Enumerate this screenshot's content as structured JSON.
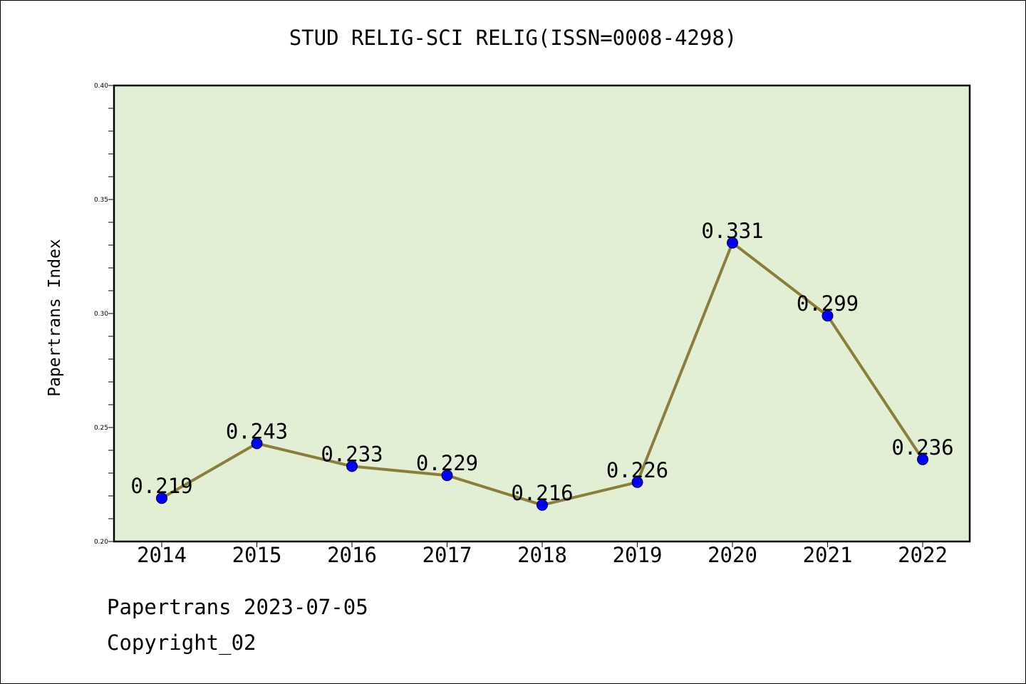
{
  "chart_data": {
    "type": "line",
    "title": "STUD RELIG-SCI RELIG(ISSN=0008-4298)",
    "ylabel": "Papertrans Index",
    "xlabel": "",
    "categories": [
      "2014",
      "2015",
      "2016",
      "2017",
      "2018",
      "2019",
      "2020",
      "2021",
      "2022"
    ],
    "series": [
      {
        "values": [
          0.219,
          0.243,
          0.233,
          0.229,
          0.216,
          0.226,
          0.331,
          0.299,
          0.236
        ],
        "labels": [
          "0.219",
          "0.243",
          "0.233",
          "0.229",
          "0.216",
          "0.226",
          "0.331",
          "0.299",
          "0.236"
        ]
      }
    ],
    "ylim": [
      0.2,
      0.4
    ],
    "yticks": [
      "0.20",
      "0.25",
      "0.30",
      "0.35",
      "0.40"
    ],
    "grid": false,
    "colors": {
      "plot_background": "#e2efd5",
      "line": "#8b7d3a",
      "marker": "#0000ff"
    }
  },
  "footer": {
    "date_line": "Papertrans 2023-07-05",
    "copyright": "Copyright_02"
  }
}
